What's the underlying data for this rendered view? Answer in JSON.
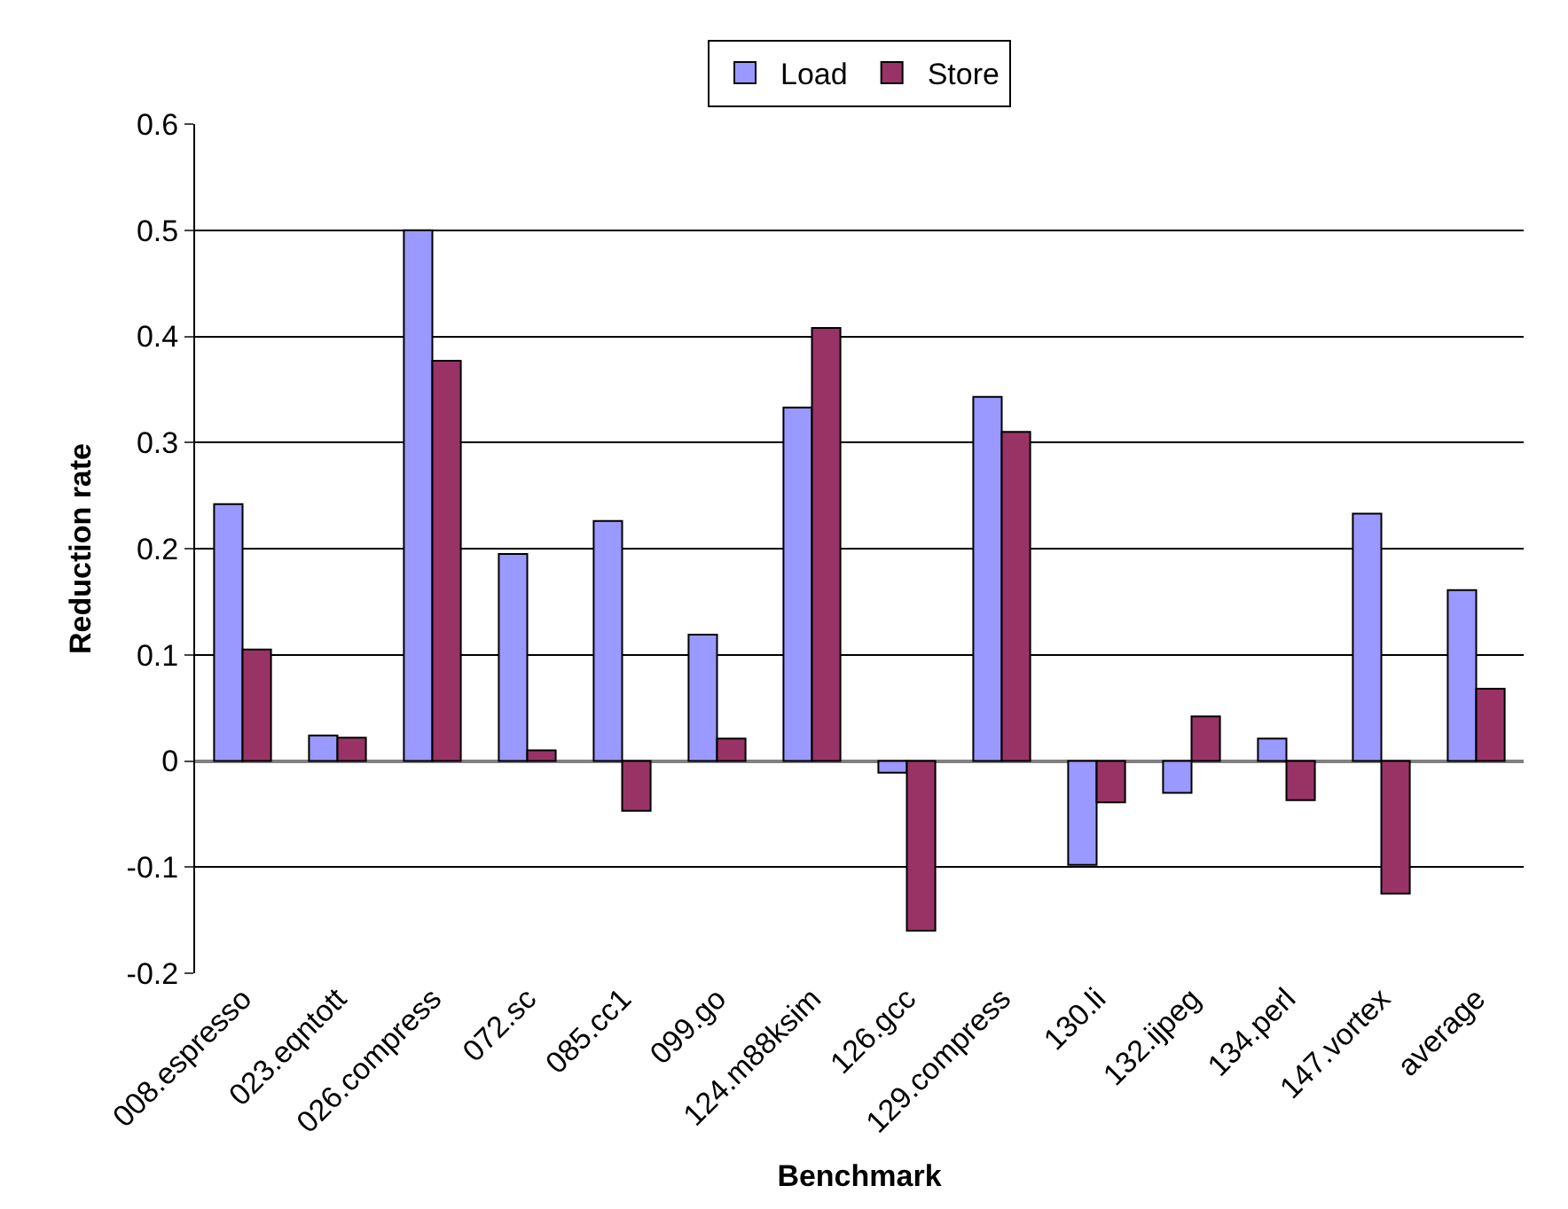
{
  "chart_data": {
    "type": "bar",
    "xlabel": "Benchmark",
    "ylabel": "Reduction rate",
    "categories": [
      "008.espresso",
      "023.eqntott",
      "026.compress",
      "072.sc",
      "085.cc1",
      "099.go",
      "124.m88ksim",
      "126.gcc",
      "129.compress",
      "130.li",
      "132.ijpeg",
      "134.perl",
      "147.vortex",
      "average"
    ],
    "series": [
      {
        "name": "Load",
        "color": "#9999ff",
        "values": [
          0.242,
          0.024,
          0.5,
          0.195,
          0.226,
          0.119,
          0.333,
          -0.011,
          0.343,
          -0.098,
          -0.03,
          0.021,
          0.233,
          0.161
        ]
      },
      {
        "name": "Store",
        "color": "#993366",
        "values": [
          0.105,
          0.022,
          0.377,
          0.01,
          -0.047,
          0.021,
          0.408,
          -0.16,
          0.31,
          -0.039,
          0.042,
          -0.037,
          -0.125,
          0.068
        ]
      }
    ],
    "ylim": [
      -0.2,
      0.6
    ],
    "yticks": [
      -0.2,
      -0.1,
      0,
      0.1,
      0.2,
      0.3,
      0.4,
      0.5,
      0.6
    ],
    "grid": "y",
    "legend": "top"
  }
}
